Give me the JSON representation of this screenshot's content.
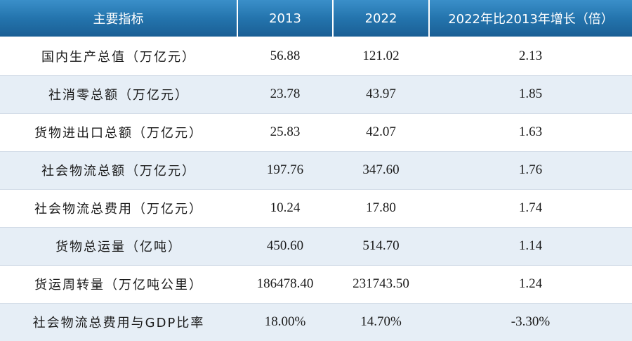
{
  "table": {
    "headers": [
      "主要指标",
      "2013",
      "2022",
      "2022年比2013年增长（倍）"
    ],
    "rows": [
      [
        "国内生产总值（万亿元）",
        "56.88",
        "121.02",
        "2.13"
      ],
      [
        "社消零总额（万亿元）",
        "23.78",
        "43.97",
        "1.85"
      ],
      [
        "货物进出口总额（万亿元）",
        "25.83",
        "42.07",
        "1.63"
      ],
      [
        "社会物流总额（万亿元）",
        "197.76",
        "347.60",
        "1.76"
      ],
      [
        "社会物流总费用（万亿元）",
        "10.24",
        "17.80",
        "1.74"
      ],
      [
        "货物总运量（亿吨）",
        "450.60",
        "514.70",
        "1.14"
      ],
      [
        "货运周转量（万亿吨公里）",
        "186478.40",
        "231743.50",
        "1.24"
      ],
      [
        "社会物流总费用与GDP比率",
        "18.00%",
        "14.70%",
        "-3.30%"
      ]
    ]
  },
  "colors": {
    "header_bg": "#2474ad",
    "header_text": "#ffffff",
    "row_alt_bg": "#e6eef6"
  }
}
